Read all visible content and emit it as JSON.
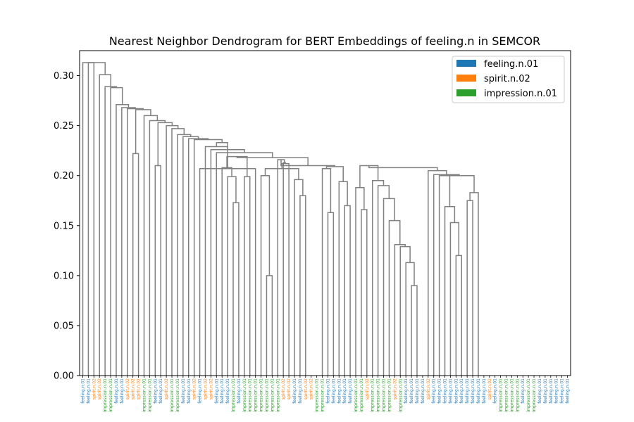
{
  "chart_data": {
    "type": "dendrogram",
    "title": "Nearest Neighbor Dendrogram for BERT Embeddings of feeling.n in SEMCOR",
    "xlabel": "",
    "ylabel": "",
    "ylim": [
      0,
      0.325
    ],
    "yticks": [
      "0.00",
      "0.05",
      "0.10",
      "0.15",
      "0.20",
      "0.25",
      "0.30"
    ],
    "grid": false,
    "legend_position": "top-right",
    "line_color": "#808080",
    "legend": [
      {
        "label": "feeling.n.01",
        "color": "#1f77b4"
      },
      {
        "label": "spirit.n.02",
        "color": "#ff7f0e"
      },
      {
        "label": "impression.n.01",
        "color": "#2ca02c"
      }
    ],
    "leaves": [
      "feeling.n.01",
      "feeling.n.01",
      "spirit.n.02",
      "spirit.n.02",
      "impression.n.01",
      "impression.n.01",
      "feeling.n.01",
      "feeling.n.01",
      "spirit.n.02",
      "spirit.n.02",
      "spirit.n.02",
      "impression.n.01",
      "impression.n.01",
      "feeling.n.01",
      "feeling.n.01",
      "spirit.n.02",
      "impression.n.01",
      "impression.n.01",
      "feeling.n.01",
      "feeling.n.01",
      "spirit.n.02",
      "feeling.n.01",
      "spirit.n.02",
      "spirit.n.02",
      "feeling.n.01",
      "feeling.n.01",
      "feeling.n.01",
      "impression.n.01",
      "feeling.n.01",
      "impression.n.01",
      "impression.n.01",
      "impression.n.01",
      "impression.n.01",
      "impression.n.01",
      "impression.n.01",
      "impression.n.01",
      "spirit.n.02",
      "spirit.n.02",
      "feeling.n.01",
      "feeling.n.01",
      "spirit.n.02",
      "spirit.n.02",
      "impression.n.01",
      "impression.n.01",
      "feeling.n.01",
      "feeling.n.01",
      "feeling.n.01",
      "feeling.n.01",
      "feeling.n.01",
      "impression.n.01",
      "impression.n.01",
      "spirit.n.02",
      "impression.n.01",
      "impression.n.01",
      "impression.n.01",
      "impression.n.01",
      "spirit.n.02",
      "impression.n.01",
      "feeling.n.01",
      "feeling.n.01",
      "feeling.n.01",
      "feeling.n.01",
      "spirit.n.02",
      "feeling.n.01",
      "feeling.n.01",
      "feeling.n.01",
      "feeling.n.01",
      "feeling.n.01",
      "feeling.n.01",
      "feeling.n.01",
      "feeling.n.01",
      "feeling.n.01",
      "feeling.n.01",
      "spirit.n.02",
      "feeling.n.01",
      "impression.n.01",
      "impression.n.01",
      "impression.n.01",
      "impression.n.01",
      "feeling.n.01",
      "impression.n.01",
      "impression.n.01",
      "feeling.n.01",
      "feeling.n.01",
      "feeling.n.01",
      "feeling.n.01",
      "feeling.n.01",
      "feeling.n.01"
    ],
    "merges": [
      {
        "left": 59,
        "right": 60,
        "height": 0.09
      },
      {
        "left": 58,
        "right": 88,
        "height": 0.113
      },
      {
        "left": 57,
        "right": 89,
        "height": 0.129
      },
      {
        "left": 56,
        "right": 90,
        "height": 0.131
      },
      {
        "left": 55,
        "right": 91,
        "height": 0.155
      },
      {
        "left": 54,
        "right": 92,
        "height": 0.177
      },
      {
        "left": 53,
        "right": 93,
        "height": 0.19
      },
      {
        "left": 52,
        "right": 94,
        "height": 0.195
      },
      {
        "left": 50,
        "right": 51,
        "height": 0.166
      },
      {
        "left": 49,
        "right": 96,
        "height": 0.188
      },
      {
        "left": 95,
        "right": 97,
        "height": 0.21
      },
      {
        "left": 67,
        "right": 68,
        "height": 0.12
      },
      {
        "left": 66,
        "right": 99,
        "height": 0.153
      },
      {
        "left": 65,
        "right": 100,
        "height": 0.169
      },
      {
        "left": 64,
        "right": 101,
        "height": 0.2
      },
      {
        "left": 69,
        "right": 70,
        "height": 0.175
      },
      {
        "left": 71,
        "right": 103,
        "height": 0.183
      },
      {
        "left": 102,
        "right": 104,
        "height": 0.2
      },
      {
        "left": 63,
        "right": 105,
        "height": 0.201
      },
      {
        "left": 62,
        "right": 106,
        "height": 0.205
      },
      {
        "left": 98,
        "right": 107,
        "height": 0.208
      },
      {
        "left": 47,
        "right": 48,
        "height": 0.17
      },
      {
        "left": 46,
        "right": 109,
        "height": 0.194
      },
      {
        "left": 44,
        "right": 45,
        "height": 0.163
      },
      {
        "left": 43,
        "right": 111,
        "height": 0.207
      },
      {
        "left": 110,
        "right": 112,
        "height": 0.209
      },
      {
        "left": 33,
        "right": 34,
        "height": 0.1
      },
      {
        "left": 32,
        "right": 114,
        "height": 0.2
      },
      {
        "left": 39,
        "right": 40,
        "height": 0.18
      },
      {
        "left": 38,
        "right": 116,
        "height": 0.196
      },
      {
        "left": 115,
        "right": 117,
        "height": 0.207
      },
      {
        "left": 37,
        "right": 118,
        "height": 0.212
      },
      {
        "left": 36,
        "right": 119,
        "height": 0.213
      },
      {
        "left": 35,
        "right": 120,
        "height": 0.216
      },
      {
        "left": 113,
        "right": 121,
        "height": 0.21
      },
      {
        "left": 27,
        "right": 28,
        "height": 0.173
      },
      {
        "left": 26,
        "right": 123,
        "height": 0.199
      },
      {
        "left": 25,
        "right": 124,
        "height": 0.208
      },
      {
        "left": 29,
        "right": 30,
        "height": 0.199
      },
      {
        "left": 125,
        "right": 126,
        "height": 0.219
      },
      {
        "left": 122,
        "right": 127,
        "height": 0.218
      },
      {
        "left": 24,
        "right": 128,
        "height": 0.223
      },
      {
        "left": 23,
        "right": 129,
        "height": 0.226
      },
      {
        "left": 22,
        "right": 130,
        "height": 0.229
      },
      {
        "left": 21,
        "right": 31,
        "height": 0.207
      },
      {
        "left": 131,
        "right": 132,
        "height": 0.233
      },
      {
        "left": 20,
        "right": 133,
        "height": 0.236
      },
      {
        "left": 19,
        "right": 134,
        "height": 0.237
      },
      {
        "left": 18,
        "right": 135,
        "height": 0.239
      },
      {
        "left": 17,
        "right": 136,
        "height": 0.241
      },
      {
        "left": 16,
        "right": 137,
        "height": 0.247
      },
      {
        "left": 15,
        "right": 138,
        "height": 0.25
      },
      {
        "left": 13,
        "right": 14,
        "height": 0.21
      },
      {
        "left": 139,
        "right": 140,
        "height": 0.253
      },
      {
        "left": 12,
        "right": 141,
        "height": 0.255
      },
      {
        "left": 11,
        "right": 142,
        "height": 0.26
      },
      {
        "left": 9,
        "right": 10,
        "height": 0.222
      },
      {
        "left": 143,
        "right": 144,
        "height": 0.266
      },
      {
        "left": 8,
        "right": 145,
        "height": 0.267
      },
      {
        "left": 7,
        "right": 146,
        "height": 0.268
      },
      {
        "left": 6,
        "right": 147,
        "height": 0.271
      },
      {
        "left": 5,
        "right": 148,
        "height": 0.288
      },
      {
        "left": 4,
        "right": 149,
        "height": 0.289
      },
      {
        "left": 3,
        "right": 150,
        "height": 0.301
      },
      {
        "left": 1,
        "right": 2,
        "height": 0.313
      }
    ],
    "top_link": {
      "left": 0,
      "right": 151
    }
  }
}
